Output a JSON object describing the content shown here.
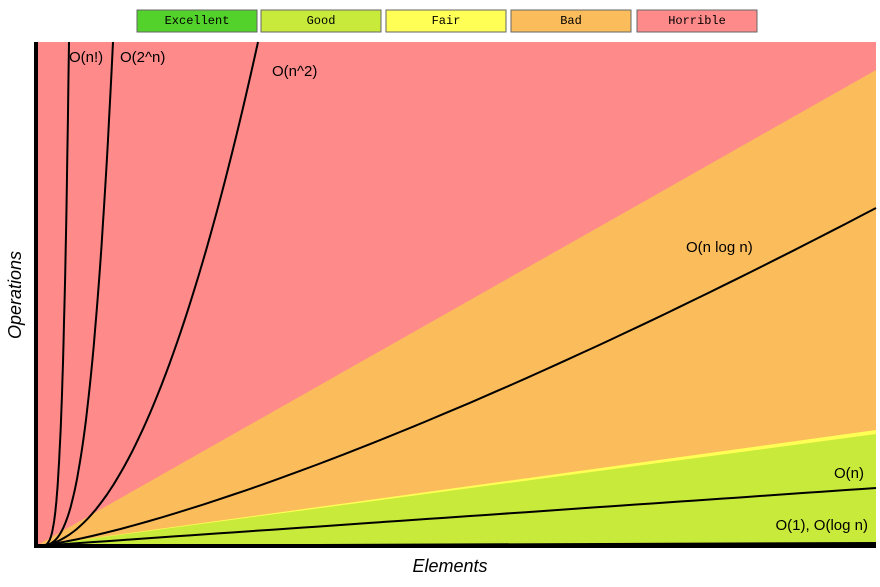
{
  "legend": [
    "Excellent",
    "Good",
    "Fair",
    "Bad",
    "Horrible"
  ],
  "axes": {
    "x_label": "Elements",
    "y_label": "Operations"
  },
  "curves": [
    "O(n!)",
    "O(2^n)",
    "O(n^2)",
    "O(n log n)",
    "O(n)",
    "O(1), O(log n)"
  ]
}
